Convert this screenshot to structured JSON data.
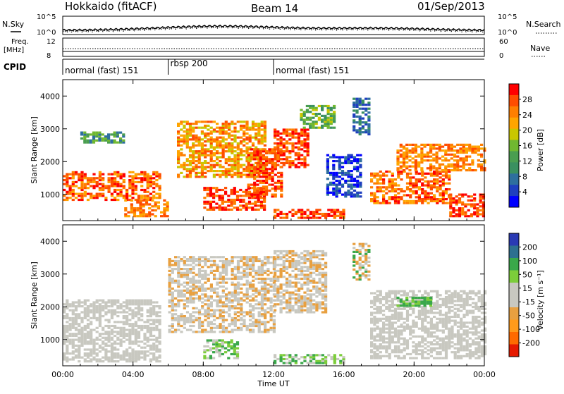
{
  "header": {
    "site": "Hokkaido (fitACF)",
    "beam": "Beam 14",
    "date": "01/Sep/2013"
  },
  "top_panels": {
    "nsky_label": "N.Sky",
    "nsearch_label": "N.Search",
    "noise_ticks_left": [
      "10^5",
      "10^0"
    ],
    "noise_ticks_right": [
      "10^5",
      "10^0"
    ],
    "freq_label_1": "Freq.",
    "freq_label_2": "[MHz]",
    "freq_ticks": [
      "12",
      "8"
    ],
    "nave_label": "Nave",
    "nave_ticks": [
      "60",
      "0"
    ],
    "cpid_label": "CPID"
  },
  "cpid_segments": [
    {
      "label": "normal (fast) 151",
      "start_hour": 0
    },
    {
      "label": "rbsp 200",
      "start_hour": 6
    },
    {
      "label": "normal (fast) 151",
      "start_hour": 12
    }
  ],
  "x_axis": {
    "label": "Time UT",
    "ticks": [
      "00:00",
      "04:00",
      "08:00",
      "12:00",
      "16:00",
      "20:00",
      "00:00"
    ],
    "range_hours": [
      0,
      24
    ]
  },
  "colors": {
    "power": [
      "#0000ff",
      "#1f3fbf",
      "#2e6f9e",
      "#3a9060",
      "#4a9e50",
      "#70b830",
      "#c9c600",
      "#ffa500",
      "#ff7f00",
      "#ff4d00",
      "#ff0000"
    ],
    "velocity": [
      "#e61a00",
      "#ff6a00",
      "#ff9a1a",
      "#e8a040",
      "#c8c8c0",
      "#c8c8c0",
      "#7ccd3a",
      "#3aa84a",
      "#2e7090",
      "#2a3ab4"
    ]
  },
  "chart_data": [
    {
      "type": "heatmap",
      "name": "power",
      "ylabel": "Slant Range [km]",
      "yticks": [
        "4000",
        "3000",
        "2000",
        "1000"
      ],
      "ylim": [
        200,
        4500
      ],
      "colorbar_label": "Power [dB]",
      "colorbar_ticks": [
        "28",
        "24",
        "20",
        "16",
        "12",
        "8",
        "4"
      ],
      "colorbar_range": [
        0,
        32
      ]
    },
    {
      "type": "heatmap",
      "name": "velocity",
      "ylabel": "Slant Range [km]",
      "yticks": [
        "4000",
        "3000",
        "2000",
        "1000"
      ],
      "ylim": [
        200,
        4500
      ],
      "colorbar_label": "Velocity [m s⁻¹]",
      "colorbar_ticks": [
        "200",
        "100",
        "50",
        "15",
        "-15",
        "-50",
        "-100",
        "-200"
      ],
      "colorbar_range": [
        -250,
        250
      ]
    }
  ]
}
